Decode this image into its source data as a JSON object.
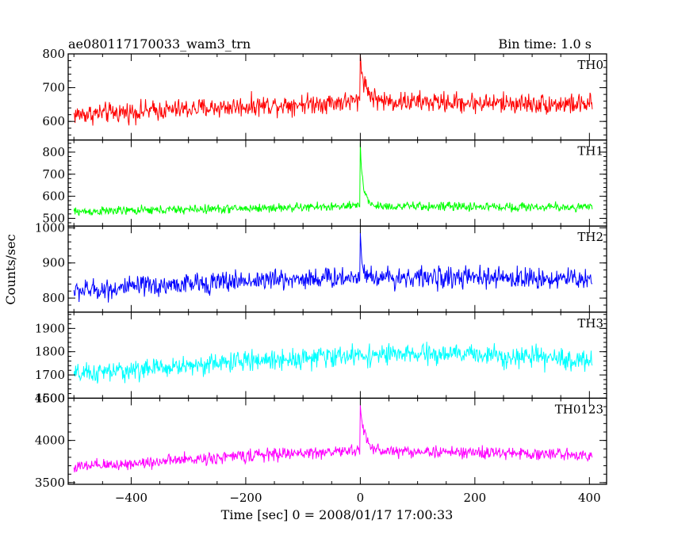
{
  "header": {
    "title": "ae080117170033_wam3_trn",
    "bin_time": "Bin time: 1.0 s"
  },
  "axes": {
    "ylabel": "Counts/sec",
    "xlabel": "Time [sec] 0 = 2008/01/17 17:00:33"
  },
  "chart_data": {
    "type": "line",
    "title": "ae080117170033_wam3_trn",
    "xlabel": "Time [sec] 0 = 2008/01/17 17:00:33",
    "ylabel": "Counts/sec",
    "xlim": [
      -510,
      430
    ],
    "x_ticks": [
      -400,
      -200,
      0,
      200,
      400
    ],
    "x_tick_labels": [
      "−400",
      "−200",
      "0",
      "200",
      "400"
    ],
    "x_sampling": {
      "start": -500,
      "end": 405,
      "step": 1
    },
    "legend": "none",
    "grid": false,
    "panels": [
      {
        "name": "TH0",
        "color": "#ff0000",
        "ylim": [
          545,
          800
        ],
        "yticks": [
          600,
          700,
          800
        ],
        "ytick_labels": [
          "600",
          "700",
          "800"
        ],
        "baseline": [
          [
            -500,
            620
          ],
          [
            -200,
            645
          ],
          [
            0,
            660
          ],
          [
            400,
            650
          ]
        ],
        "noise_amplitude": 45,
        "spike": {
          "x": 0,
          "peak": 800,
          "decay": 10
        }
      },
      {
        "name": "TH1",
        "color": "#00ff00",
        "ylim": [
          465,
          855
        ],
        "yticks": [
          500,
          600,
          700,
          800
        ],
        "ytick_labels": [
          "500",
          "600",
          "700",
          "800"
        ],
        "baseline": [
          [
            -500,
            530
          ],
          [
            -200,
            545
          ],
          [
            0,
            555
          ],
          [
            400,
            550
          ]
        ],
        "noise_amplitude": 30,
        "spike": {
          "x": 0,
          "peak": 850,
          "decay": 6
        }
      },
      {
        "name": "TH2",
        "color": "#0000ff",
        "ylim": [
          760,
          1005
        ],
        "yticks": [
          800,
          900,
          1000
        ],
        "ytick_labels": [
          "800",
          "900",
          "1000"
        ],
        "baseline": [
          [
            -500,
            820
          ],
          [
            -200,
            850
          ],
          [
            0,
            860
          ],
          [
            400,
            855
          ]
        ],
        "noise_amplitude": 45,
        "spike": {
          "x": 0,
          "peak": 1000,
          "decay": 4
        }
      },
      {
        "name": "TH3",
        "color": "#00ffff",
        "ylim": [
          1600,
          1970
        ],
        "yticks": [
          1600,
          1700,
          1800,
          1900
        ],
        "ytick_labels": [
          "1600",
          "1700",
          "1800",
          "1900"
        ],
        "baseline": [
          [
            -500,
            1700
          ],
          [
            -200,
            1760
          ],
          [
            0,
            1785
          ],
          [
            200,
            1790
          ],
          [
            400,
            1760
          ]
        ],
        "noise_amplitude": 65,
        "spike": null
      },
      {
        "name": "TH0123",
        "color": "#ff00ff",
        "ylim": [
          3480,
          4500
        ],
        "yticks": [
          3500,
          4000,
          4500
        ],
        "ytick_labels": [
          "3500",
          "4000",
          "4500"
        ],
        "baseline": [
          [
            -500,
            3680
          ],
          [
            -200,
            3820
          ],
          [
            0,
            3880
          ],
          [
            400,
            3830
          ]
        ],
        "noise_amplitude": 110,
        "spike": {
          "x": 0,
          "peak": 4480,
          "decay": 8
        }
      }
    ]
  }
}
